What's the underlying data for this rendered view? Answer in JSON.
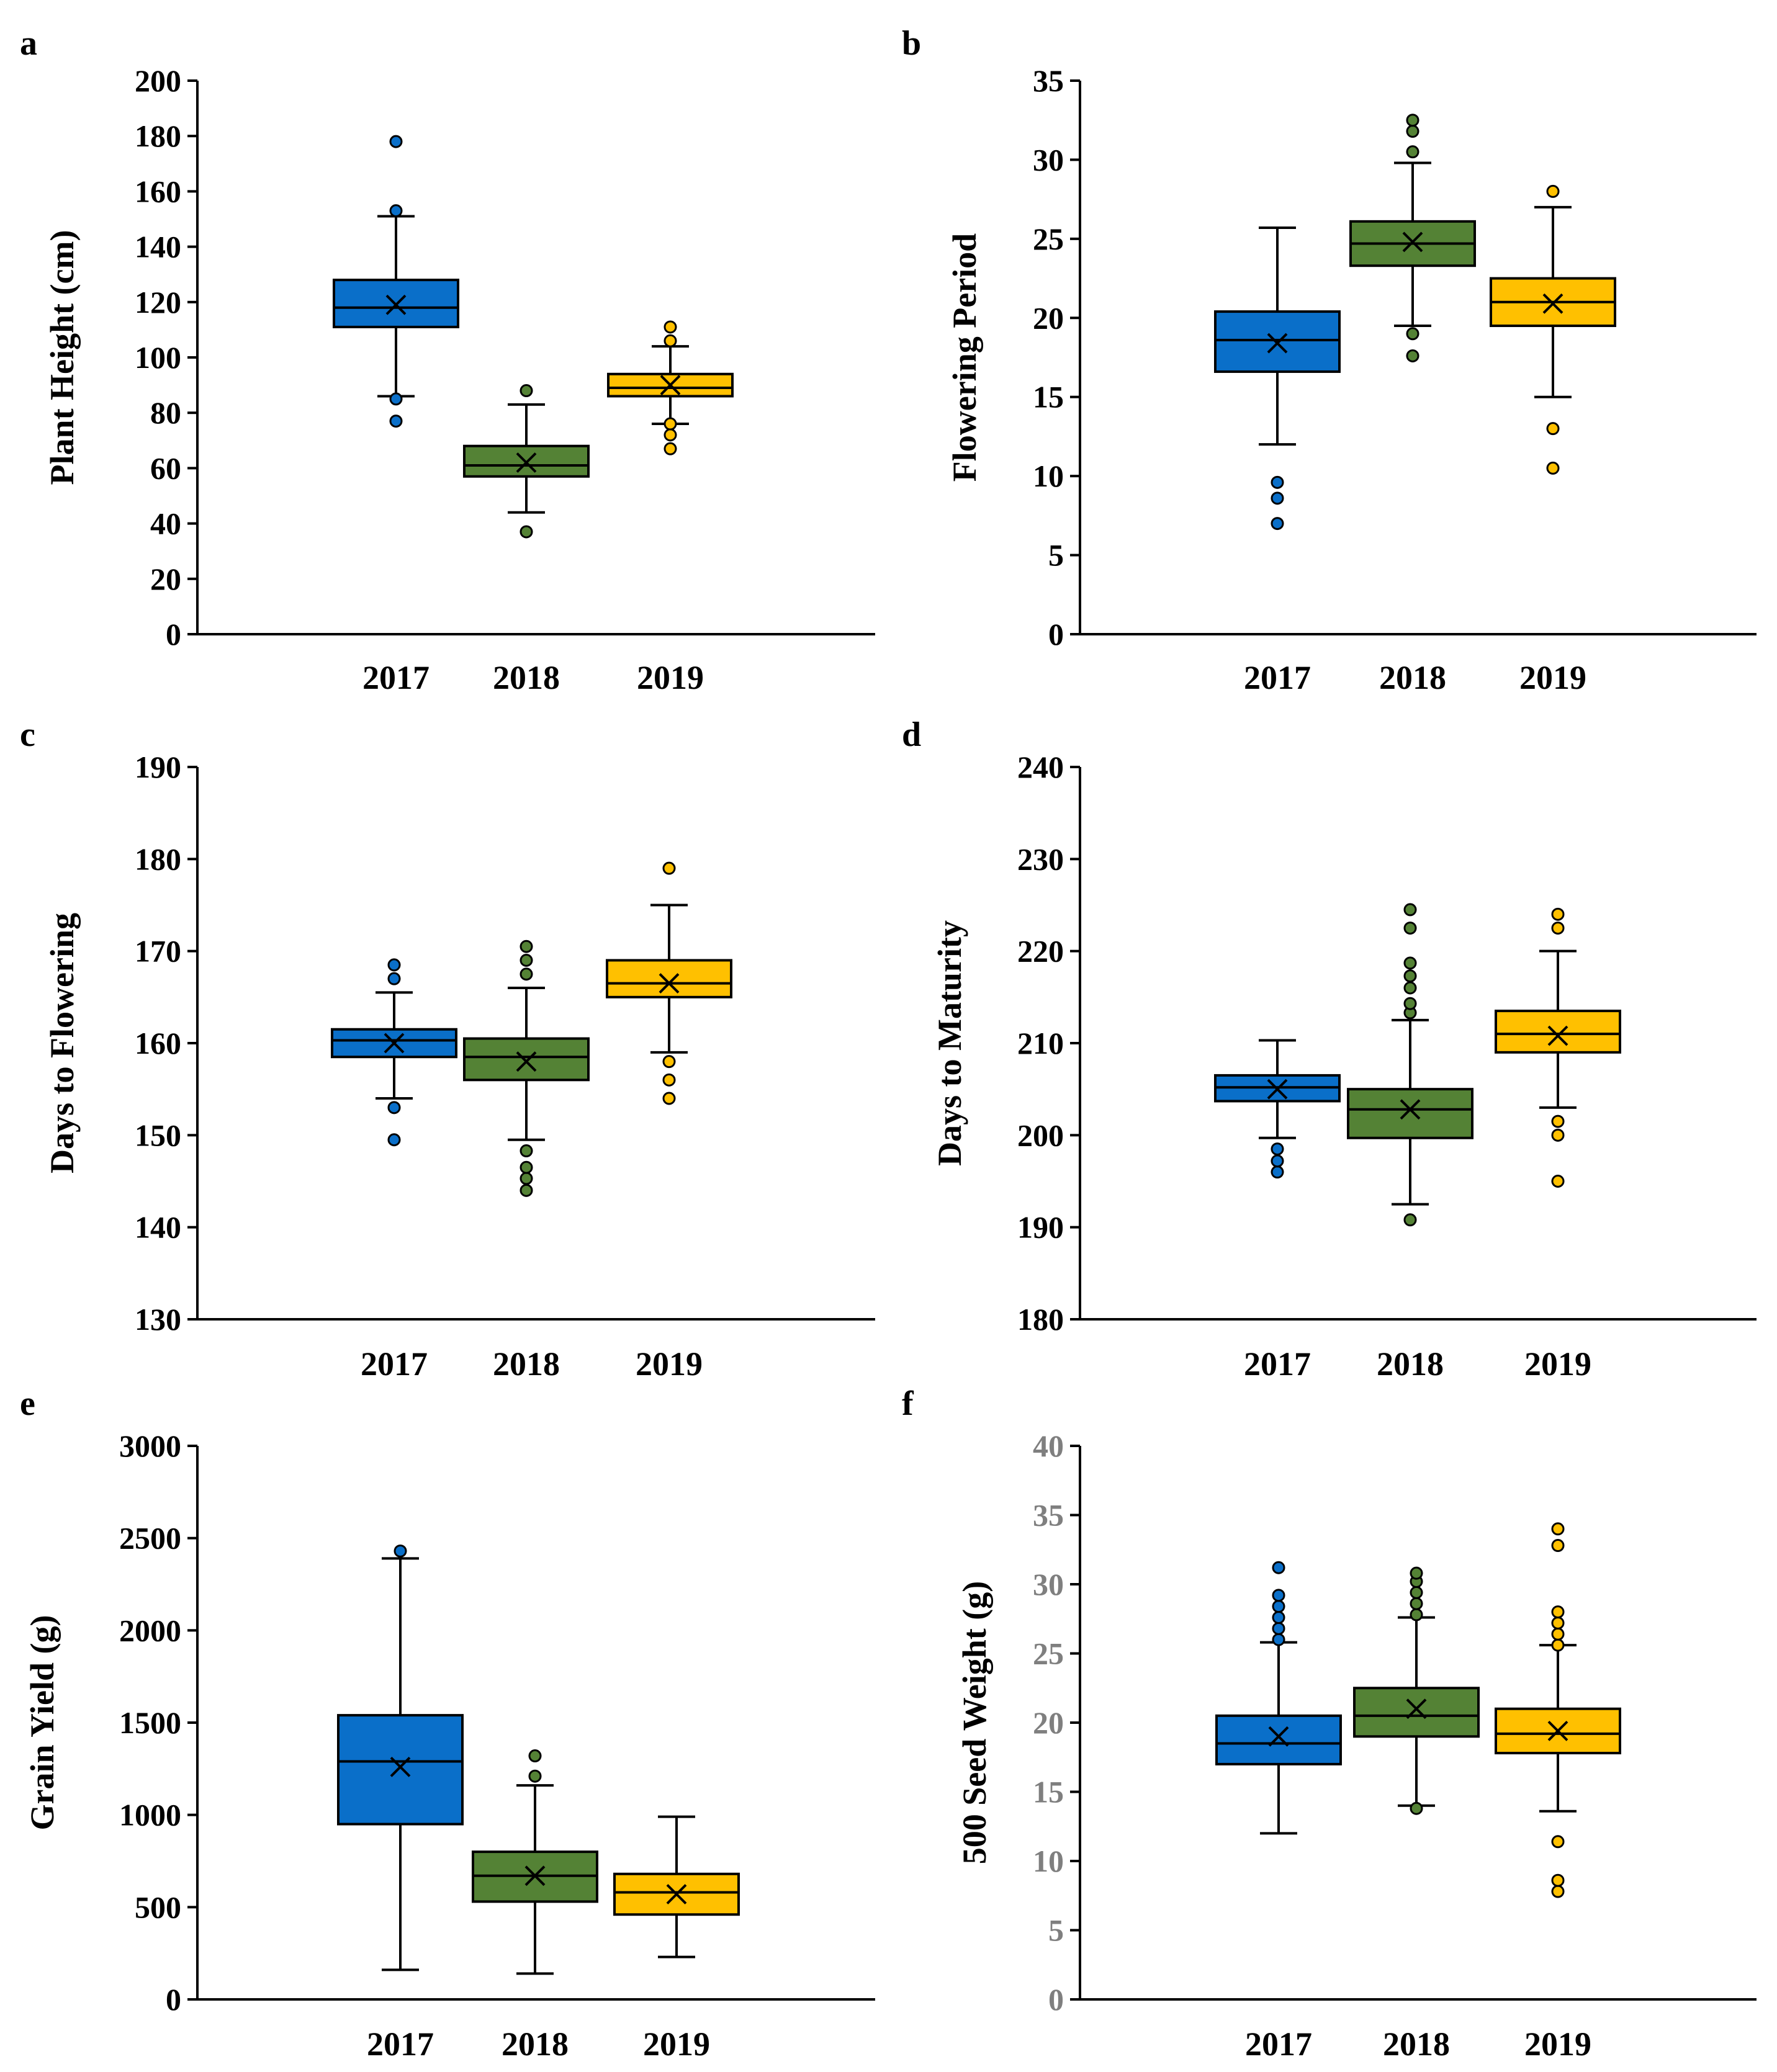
{
  "colors": {
    "2017": "#0a6fc9",
    "2018": "#548235",
    "2019": "#ffc000",
    "grey_text": "#7f7f7f"
  },
  "chart_data": [
    {
      "panel": "a",
      "type": "box",
      "ylabel": "Plant Height (cm)",
      "ylim": [
        0,
        200
      ],
      "yticks": [
        0,
        20,
        40,
        60,
        80,
        100,
        120,
        140,
        160,
        180,
        200
      ],
      "categories": [
        "2017",
        "2018",
        "2019"
      ],
      "series": [
        {
          "name": "2017",
          "q1": 111,
          "median": 118,
          "q3": 128,
          "whisker_low": 86,
          "whisker_high": 151,
          "mean": 119,
          "outliers": [
            77,
            85,
            153,
            178
          ]
        },
        {
          "name": "2018",
          "q1": 57,
          "median": 61,
          "q3": 68,
          "whisker_low": 44,
          "whisker_high": 83,
          "mean": 62,
          "outliers": [
            37,
            88
          ]
        },
        {
          "name": "2019",
          "q1": 86,
          "median": 89,
          "q3": 94,
          "whisker_low": 76,
          "whisker_high": 104,
          "mean": 90,
          "outliers": [
            67,
            72,
            76,
            106,
            111
          ]
        }
      ]
    },
    {
      "panel": "b",
      "type": "box",
      "ylabel": "Flowering Period",
      "ylim": [
        0,
        35
      ],
      "yticks": [
        0,
        5,
        10,
        15,
        20,
        25,
        30,
        35
      ],
      "categories": [
        "2017",
        "2018",
        "2019"
      ],
      "series": [
        {
          "name": "2017",
          "q1": 16.6,
          "median": 18.6,
          "q3": 20.4,
          "whisker_low": 12,
          "whisker_high": 25.7,
          "mean": 18.4,
          "outliers": [
            7,
            8.6,
            9.6
          ]
        },
        {
          "name": "2018",
          "q1": 23.3,
          "median": 24.7,
          "q3": 26.1,
          "whisker_low": 19.5,
          "whisker_high": 29.8,
          "mean": 24.8,
          "outliers": [
            17.6,
            19,
            30.5,
            31.8,
            32.5
          ]
        },
        {
          "name": "2019",
          "q1": 19.5,
          "median": 21,
          "q3": 22.5,
          "whisker_low": 15,
          "whisker_high": 27,
          "mean": 20.9,
          "outliers": [
            10.5,
            13,
            28
          ]
        }
      ]
    },
    {
      "panel": "c",
      "type": "box",
      "ylabel": "Days to Flowering",
      "ylim": [
        130,
        190
      ],
      "yticks": [
        130,
        140,
        150,
        160,
        170,
        180,
        190
      ],
      "categories": [
        "2017",
        "2018",
        "2019"
      ],
      "series": [
        {
          "name": "2017",
          "q1": 158.5,
          "median": 160.3,
          "q3": 161.5,
          "whisker_low": 154,
          "whisker_high": 165.5,
          "mean": 160,
          "outliers": [
            149.5,
            153,
            167,
            168.5
          ]
        },
        {
          "name": "2018",
          "q1": 156,
          "median": 158.5,
          "q3": 160.5,
          "whisker_low": 149.5,
          "whisker_high": 166,
          "mean": 158,
          "outliers": [
            144,
            145.3,
            146.5,
            148.3,
            167.5,
            169,
            170.5
          ]
        },
        {
          "name": "2019",
          "q1": 165,
          "median": 166.5,
          "q3": 169,
          "whisker_low": 159,
          "whisker_high": 175,
          "mean": 166.5,
          "outliers": [
            154,
            156,
            158,
            179
          ]
        }
      ]
    },
    {
      "panel": "d",
      "type": "box",
      "ylabel": "Days to Maturity",
      "ylim": [
        180,
        240
      ],
      "yticks": [
        180,
        190,
        200,
        210,
        220,
        230,
        240
      ],
      "categories": [
        "2017",
        "2018",
        "2019"
      ],
      "series": [
        {
          "name": "2017",
          "q1": 203.7,
          "median": 205.2,
          "q3": 206.5,
          "whisker_low": 199.7,
          "whisker_high": 210.3,
          "mean": 205,
          "outliers": [
            196,
            197.2,
            198.5
          ]
        },
        {
          "name": "2018",
          "q1": 199.7,
          "median": 202.8,
          "q3": 205,
          "whisker_low": 192.5,
          "whisker_high": 212.5,
          "mean": 202.8,
          "outliers": [
            190.8,
            213.3,
            214.3,
            216,
            217.3,
            218.7,
            222.5,
            224.5
          ]
        },
        {
          "name": "2019",
          "q1": 209,
          "median": 211,
          "q3": 213.5,
          "whisker_low": 203,
          "whisker_high": 220,
          "mean": 210.8,
          "outliers": [
            195,
            200,
            201.5,
            222.5,
            224
          ]
        }
      ]
    },
    {
      "panel": "e",
      "type": "box",
      "ylabel": "Grain Yield (g)",
      "ylim": [
        0,
        3000
      ],
      "yticks": [
        0,
        500,
        1000,
        1500,
        2000,
        2500,
        3000
      ],
      "categories": [
        "2017",
        "2018",
        "2019"
      ],
      "series": [
        {
          "name": "2017",
          "q1": 950,
          "median": 1290,
          "q3": 1540,
          "whisker_low": 160,
          "whisker_high": 2390,
          "mean": 1260,
          "outliers": [
            2430
          ]
        },
        {
          "name": "2018",
          "q1": 530,
          "median": 670,
          "q3": 800,
          "whisker_low": 140,
          "whisker_high": 1160,
          "mean": 670,
          "outliers": [
            1210,
            1320
          ]
        },
        {
          "name": "2019",
          "q1": 460,
          "median": 580,
          "q3": 680,
          "whisker_low": 230,
          "whisker_high": 990,
          "mean": 570,
          "outliers": []
        }
      ]
    },
    {
      "panel": "f",
      "type": "box",
      "ylabel": "500 Seed Weight (g)",
      "ylim": [
        0,
        40
      ],
      "yticks": [
        0,
        5,
        10,
        15,
        20,
        25,
        30,
        35,
        40
      ],
      "categories": [
        "2017",
        "2018",
        "2019"
      ],
      "series": [
        {
          "name": "2017",
          "q1": 17,
          "median": 18.5,
          "q3": 20.5,
          "whisker_low": 12,
          "whisker_high": 25.8,
          "mean": 19,
          "outliers": [
            26,
            26.8,
            27.6,
            28.4,
            29.2,
            31.2
          ]
        },
        {
          "name": "2018",
          "q1": 19,
          "median": 20.5,
          "q3": 22.5,
          "whisker_low": 14,
          "whisker_high": 27.6,
          "mean": 21,
          "outliers": [
            13.8,
            27.8,
            28.6,
            29.4,
            30.2,
            30.8
          ]
        },
        {
          "name": "2019",
          "q1": 17.8,
          "median": 19.2,
          "q3": 21,
          "whisker_low": 13.6,
          "whisker_high": 25.6,
          "mean": 19.4,
          "outliers": [
            7.8,
            8.6,
            11.4,
            25.6,
            26.4,
            27.2,
            28,
            32.8,
            34
          ]
        }
      ]
    }
  ]
}
